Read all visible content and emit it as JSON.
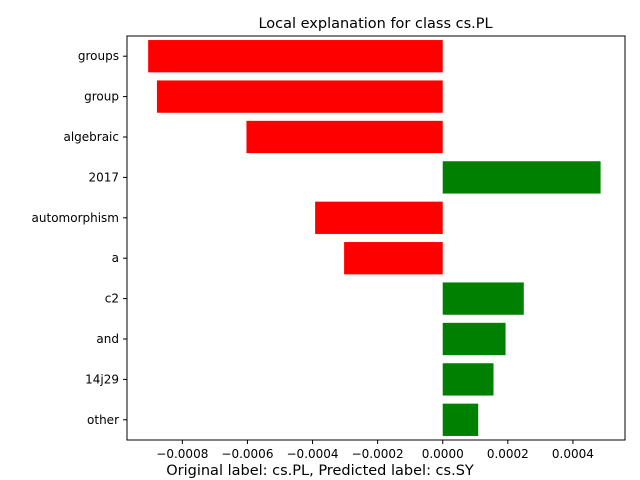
{
  "chart_data": {
    "type": "bar",
    "orientation": "horizontal",
    "title": "Local explanation for class cs.PL",
    "caption": "Original label: cs.PL, Predicted label: cs.SY",
    "xlabel": "",
    "ylabel": "",
    "xlim": [
      -0.00097,
      0.00056
    ],
    "x_ticks": [
      -0.0008,
      -0.0006,
      -0.0004,
      -0.0002,
      0.0,
      0.0002,
      0.0004
    ],
    "x_tick_labels": [
      "−0.0008",
      "−0.0006",
      "−0.0004",
      "−0.0002",
      "0.0000",
      "0.0002",
      "0.0004"
    ],
    "categories": [
      "groups",
      "group",
      "algebraic",
      "2017",
      "automorphism",
      "a",
      "c2",
      "and",
      "14j29",
      "other"
    ],
    "values": [
      -0.000905,
      -0.000878,
      -0.000603,
      0.000485,
      -0.000392,
      -0.000303,
      0.000249,
      0.000193,
      0.000156,
      0.000109
    ],
    "colors": {
      "negative": "#ff0000",
      "positive": "#008000"
    },
    "grid": false,
    "legend": "none"
  }
}
